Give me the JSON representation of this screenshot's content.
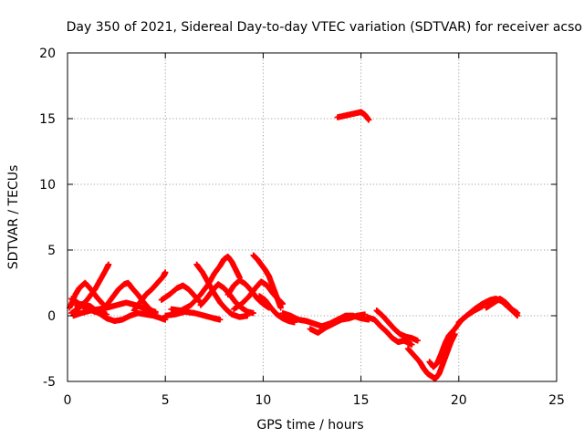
{
  "chart_data": {
    "type": "scatter",
    "title": "Day 350 of 2021, Sidereal Day-to-day VTEC variation (SDTVAR) for receiver acso",
    "xlabel": "GPS time / hours",
    "ylabel": "SDTVAR / TECUs",
    "xlim": [
      0,
      25
    ],
    "ylim": [
      -5,
      20
    ],
    "xticks": [
      0,
      5,
      10,
      15,
      20,
      25
    ],
    "yticks": [
      -5,
      0,
      5,
      10,
      15,
      20
    ],
    "grid": true,
    "marker": "+",
    "color": "#ff0000",
    "series": [
      {
        "name": "SDTVAR",
        "tracks": [
          [
            [
              0.2,
              1.3
            ],
            [
              0.5,
              1.0
            ],
            [
              0.8,
              0.7
            ],
            [
              1.1,
              0.5
            ],
            [
              1.4,
              0.3
            ],
            [
              1.7,
              0.2
            ],
            [
              2.0,
              0.1
            ]
          ],
          [
            [
              0.2,
              0.2
            ],
            [
              0.6,
              0.6
            ],
            [
              1.0,
              1.2
            ],
            [
              1.4,
              2.0
            ],
            [
              1.7,
              2.8
            ],
            [
              2.0,
              3.6
            ],
            [
              2.1,
              3.9
            ]
          ],
          [
            [
              0.4,
              0.8
            ],
            [
              0.8,
              0.9
            ],
            [
              1.2,
              0.7
            ],
            [
              1.6,
              0.2
            ],
            [
              2.0,
              -0.2
            ],
            [
              2.4,
              -0.4
            ],
            [
              2.8,
              -0.3
            ],
            [
              3.2,
              0.0
            ],
            [
              3.6,
              0.2
            ],
            [
              4.0,
              0.1
            ],
            [
              4.4,
              0.0
            ],
            [
              4.8,
              -0.2
            ],
            [
              5.0,
              -0.3
            ]
          ],
          [
            [
              0.3,
              0.0
            ],
            [
              0.7,
              0.2
            ],
            [
              1.2,
              0.4
            ],
            [
              1.6,
              0.5
            ],
            [
              2.0,
              0.6
            ],
            [
              2.5,
              0.8
            ],
            [
              3.0,
              1.0
            ],
            [
              3.5,
              0.8
            ],
            [
              4.0,
              0.5
            ],
            [
              4.5,
              0.3
            ]
          ],
          [
            [
              0.1,
              0.6
            ],
            [
              0.4,
              1.6
            ],
            [
              0.6,
              2.1
            ],
            [
              0.9,
              2.5
            ],
            [
              1.2,
              2.0
            ],
            [
              1.5,
              1.4
            ],
            [
              1.8,
              0.9
            ]
          ],
          [
            [
              1.6,
              0.3
            ],
            [
              2.0,
              0.8
            ],
            [
              2.3,
              1.4
            ],
            [
              2.6,
              2.0
            ],
            [
              2.9,
              2.4
            ],
            [
              3.1,
              2.5
            ],
            [
              3.3,
              2.1
            ],
            [
              3.6,
              1.6
            ],
            [
              3.9,
              1.0
            ],
            [
              4.2,
              0.5
            ],
            [
              4.5,
              0.2
            ]
          ],
          [
            [
              3.4,
              0.4
            ],
            [
              3.7,
              1.0
            ],
            [
              4.0,
              1.6
            ],
            [
              4.3,
              2.0
            ],
            [
              4.6,
              2.5
            ],
            [
              4.9,
              3.0
            ],
            [
              5.0,
              3.3
            ]
          ],
          [
            [
              4.8,
              1.2
            ],
            [
              5.2,
              1.6
            ],
            [
              5.6,
              2.1
            ],
            [
              5.9,
              2.3
            ],
            [
              6.2,
              2.0
            ],
            [
              6.5,
              1.5
            ],
            [
              6.8,
              1.0
            ]
          ],
          [
            [
              5.0,
              0.0
            ],
            [
              5.5,
              0.1
            ],
            [
              6.0,
              0.3
            ],
            [
              6.5,
              0.2
            ],
            [
              7.0,
              0.0
            ],
            [
              7.5,
              -0.2
            ],
            [
              7.8,
              -0.3
            ]
          ],
          [
            [
              5.3,
              0.5
            ],
            [
              5.8,
              0.4
            ],
            [
              6.3,
              0.8
            ],
            [
              6.8,
              1.6
            ],
            [
              7.2,
              2.4
            ],
            [
              7.5,
              3.2
            ],
            [
              7.8,
              3.8
            ],
            [
              8.0,
              4.3
            ],
            [
              8.2,
              4.5
            ],
            [
              8.4,
              4.1
            ],
            [
              8.6,
              3.5
            ],
            [
              8.8,
              2.9
            ]
          ],
          [
            [
              6.6,
              3.9
            ],
            [
              6.9,
              3.3
            ],
            [
              7.2,
              2.5
            ],
            [
              7.5,
              1.7
            ],
            [
              7.8,
              1.0
            ],
            [
              8.1,
              0.5
            ],
            [
              8.4,
              0.1
            ],
            [
              8.8,
              -0.1
            ],
            [
              9.2,
              0.0
            ]
          ],
          [
            [
              6.8,
              0.8
            ],
            [
              7.1,
              1.3
            ],
            [
              7.4,
              1.9
            ],
            [
              7.7,
              2.4
            ],
            [
              8.0,
              2.1
            ],
            [
              8.3,
              1.6
            ],
            [
              8.6,
              1.0
            ],
            [
              8.9,
              0.6
            ],
            [
              9.2,
              0.3
            ],
            [
              9.5,
              0.2
            ]
          ],
          [
            [
              8.2,
              1.6
            ],
            [
              8.5,
              2.3
            ],
            [
              8.8,
              2.7
            ],
            [
              9.1,
              2.4
            ],
            [
              9.4,
              1.9
            ],
            [
              9.7,
              1.3
            ],
            [
              10.0,
              0.9
            ],
            [
              10.3,
              0.6
            ]
          ],
          [
            [
              8.5,
              0.5
            ],
            [
              8.9,
              0.9
            ],
            [
              9.3,
              1.5
            ],
            [
              9.6,
              2.1
            ],
            [
              9.9,
              2.6
            ],
            [
              10.2,
              2.3
            ],
            [
              10.5,
              1.7
            ],
            [
              10.8,
              1.2
            ],
            [
              11.0,
              0.9
            ]
          ],
          [
            [
              9.5,
              4.6
            ],
            [
              9.7,
              4.3
            ],
            [
              9.9,
              3.9
            ],
            [
              10.1,
              3.5
            ],
            [
              10.3,
              3.0
            ],
            [
              10.5,
              2.2
            ],
            [
              10.7,
              1.4
            ],
            [
              10.9,
              0.6
            ]
          ],
          [
            [
              9.8,
              1.5
            ],
            [
              10.1,
              1.2
            ],
            [
              10.4,
              0.6
            ],
            [
              10.7,
              0.1
            ],
            [
              11.0,
              -0.2
            ],
            [
              11.3,
              -0.4
            ],
            [
              11.6,
              -0.5
            ]
          ],
          [
            [
              11.0,
              0.2
            ],
            [
              11.4,
              0.0
            ],
            [
              11.8,
              -0.3
            ],
            [
              12.2,
              -0.4
            ],
            [
              12.6,
              -0.6
            ],
            [
              13.0,
              -0.8
            ],
            [
              13.4,
              -0.6
            ],
            [
              13.8,
              -0.3
            ],
            [
              14.2,
              0.0
            ],
            [
              14.6,
              0.0
            ],
            [
              15.0,
              -0.2
            ],
            [
              15.4,
              -0.3
            ]
          ],
          [
            [
              12.4,
              -1.0
            ],
            [
              12.8,
              -1.3
            ],
            [
              13.2,
              -0.9
            ],
            [
              13.6,
              -0.6
            ],
            [
              14.0,
              -0.3
            ],
            [
              14.4,
              -0.2
            ],
            [
              14.8,
              0.0
            ],
            [
              15.2,
              0.1
            ]
          ],
          [
            [
              13.8,
              15.1
            ],
            [
              14.1,
              15.2
            ],
            [
              14.4,
              15.3
            ],
            [
              14.7,
              15.4
            ],
            [
              15.0,
              15.5
            ],
            [
              15.2,
              15.3
            ],
            [
              15.4,
              14.9
            ]
          ],
          [
            [
              15.3,
              -0.1
            ],
            [
              15.7,
              -0.3
            ],
            [
              16.0,
              -0.8
            ],
            [
              16.3,
              -1.2
            ],
            [
              16.6,
              -1.7
            ],
            [
              16.9,
              -2.0
            ],
            [
              17.2,
              -1.9
            ],
            [
              17.6,
              -2.2
            ]
          ],
          [
            [
              15.8,
              0.4
            ],
            [
              16.1,
              0.0
            ],
            [
              16.4,
              -0.5
            ],
            [
              16.7,
              -1.0
            ],
            [
              17.0,
              -1.4
            ],
            [
              17.3,
              -1.6
            ],
            [
              17.6,
              -1.7
            ],
            [
              17.9,
              -1.9
            ]
          ],
          [
            [
              17.4,
              -2.5
            ],
            [
              17.7,
              -3.0
            ],
            [
              18.0,
              -3.5
            ],
            [
              18.2,
              -4.0
            ],
            [
              18.4,
              -4.4
            ],
            [
              18.6,
              -4.6
            ],
            [
              18.8,
              -4.8
            ],
            [
              19.0,
              -4.4
            ],
            [
              19.2,
              -3.6
            ],
            [
              19.4,
              -2.8
            ],
            [
              19.6,
              -2.0
            ],
            [
              19.8,
              -1.4
            ]
          ],
          [
            [
              18.5,
              -3.5
            ],
            [
              18.7,
              -3.9
            ],
            [
              18.9,
              -3.6
            ],
            [
              19.1,
              -2.9
            ],
            [
              19.3,
              -2.1
            ],
            [
              19.5,
              -1.5
            ],
            [
              19.8,
              -1.0
            ],
            [
              20.1,
              -0.4
            ],
            [
              20.4,
              0.0
            ],
            [
              20.8,
              0.4
            ],
            [
              21.2,
              0.7
            ]
          ],
          [
            [
              20.0,
              -0.5
            ],
            [
              20.4,
              0.0
            ],
            [
              20.8,
              0.5
            ],
            [
              21.2,
              0.9
            ],
            [
              21.6,
              1.2
            ],
            [
              21.9,
              1.3
            ],
            [
              22.2,
              1.1
            ],
            [
              22.5,
              0.7
            ],
            [
              22.8,
              0.3
            ],
            [
              23.0,
              0.0
            ]
          ],
          [
            [
              21.4,
              0.6
            ],
            [
              21.8,
              1.0
            ],
            [
              22.1,
              1.3
            ],
            [
              22.4,
              1.0
            ],
            [
              22.7,
              0.5
            ],
            [
              23.0,
              0.2
            ]
          ]
        ]
      }
    ]
  }
}
